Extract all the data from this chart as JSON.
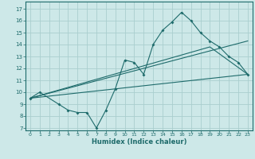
{
  "xlabel": "Humidex (Indice chaleur)",
  "bg_color": "#cde8e8",
  "grid_color": "#aacece",
  "line_color": "#1e6b6b",
  "xlim": [
    -0.5,
    23.5
  ],
  "ylim": [
    6.8,
    17.6
  ],
  "yticks": [
    7,
    8,
    9,
    10,
    11,
    12,
    13,
    14,
    15,
    16,
    17
  ],
  "xticks": [
    0,
    1,
    2,
    3,
    4,
    5,
    6,
    7,
    8,
    9,
    10,
    11,
    12,
    13,
    14,
    15,
    16,
    17,
    18,
    19,
    20,
    21,
    22,
    23
  ],
  "line1_x": [
    0,
    1,
    3,
    4,
    5,
    6,
    7,
    8,
    9,
    10,
    11,
    12,
    13,
    14,
    15,
    16,
    17,
    18,
    19,
    20,
    21,
    22,
    23
  ],
  "line1_y": [
    9.5,
    10.0,
    9.0,
    8.5,
    8.3,
    8.3,
    7.0,
    8.5,
    10.3,
    12.7,
    12.5,
    11.5,
    14.0,
    15.2,
    15.9,
    16.7,
    16.0,
    15.0,
    14.3,
    13.8,
    13.0,
    12.5,
    11.5
  ],
  "line2_x": [
    0,
    19,
    23
  ],
  "line2_y": [
    9.5,
    13.8,
    11.5
  ],
  "line3_x": [
    0,
    23
  ],
  "line3_y": [
    9.5,
    14.3
  ],
  "line4_x": [
    0,
    23
  ],
  "line4_y": [
    9.5,
    11.5
  ],
  "figsize": [
    3.2,
    2.0
  ],
  "dpi": 100
}
